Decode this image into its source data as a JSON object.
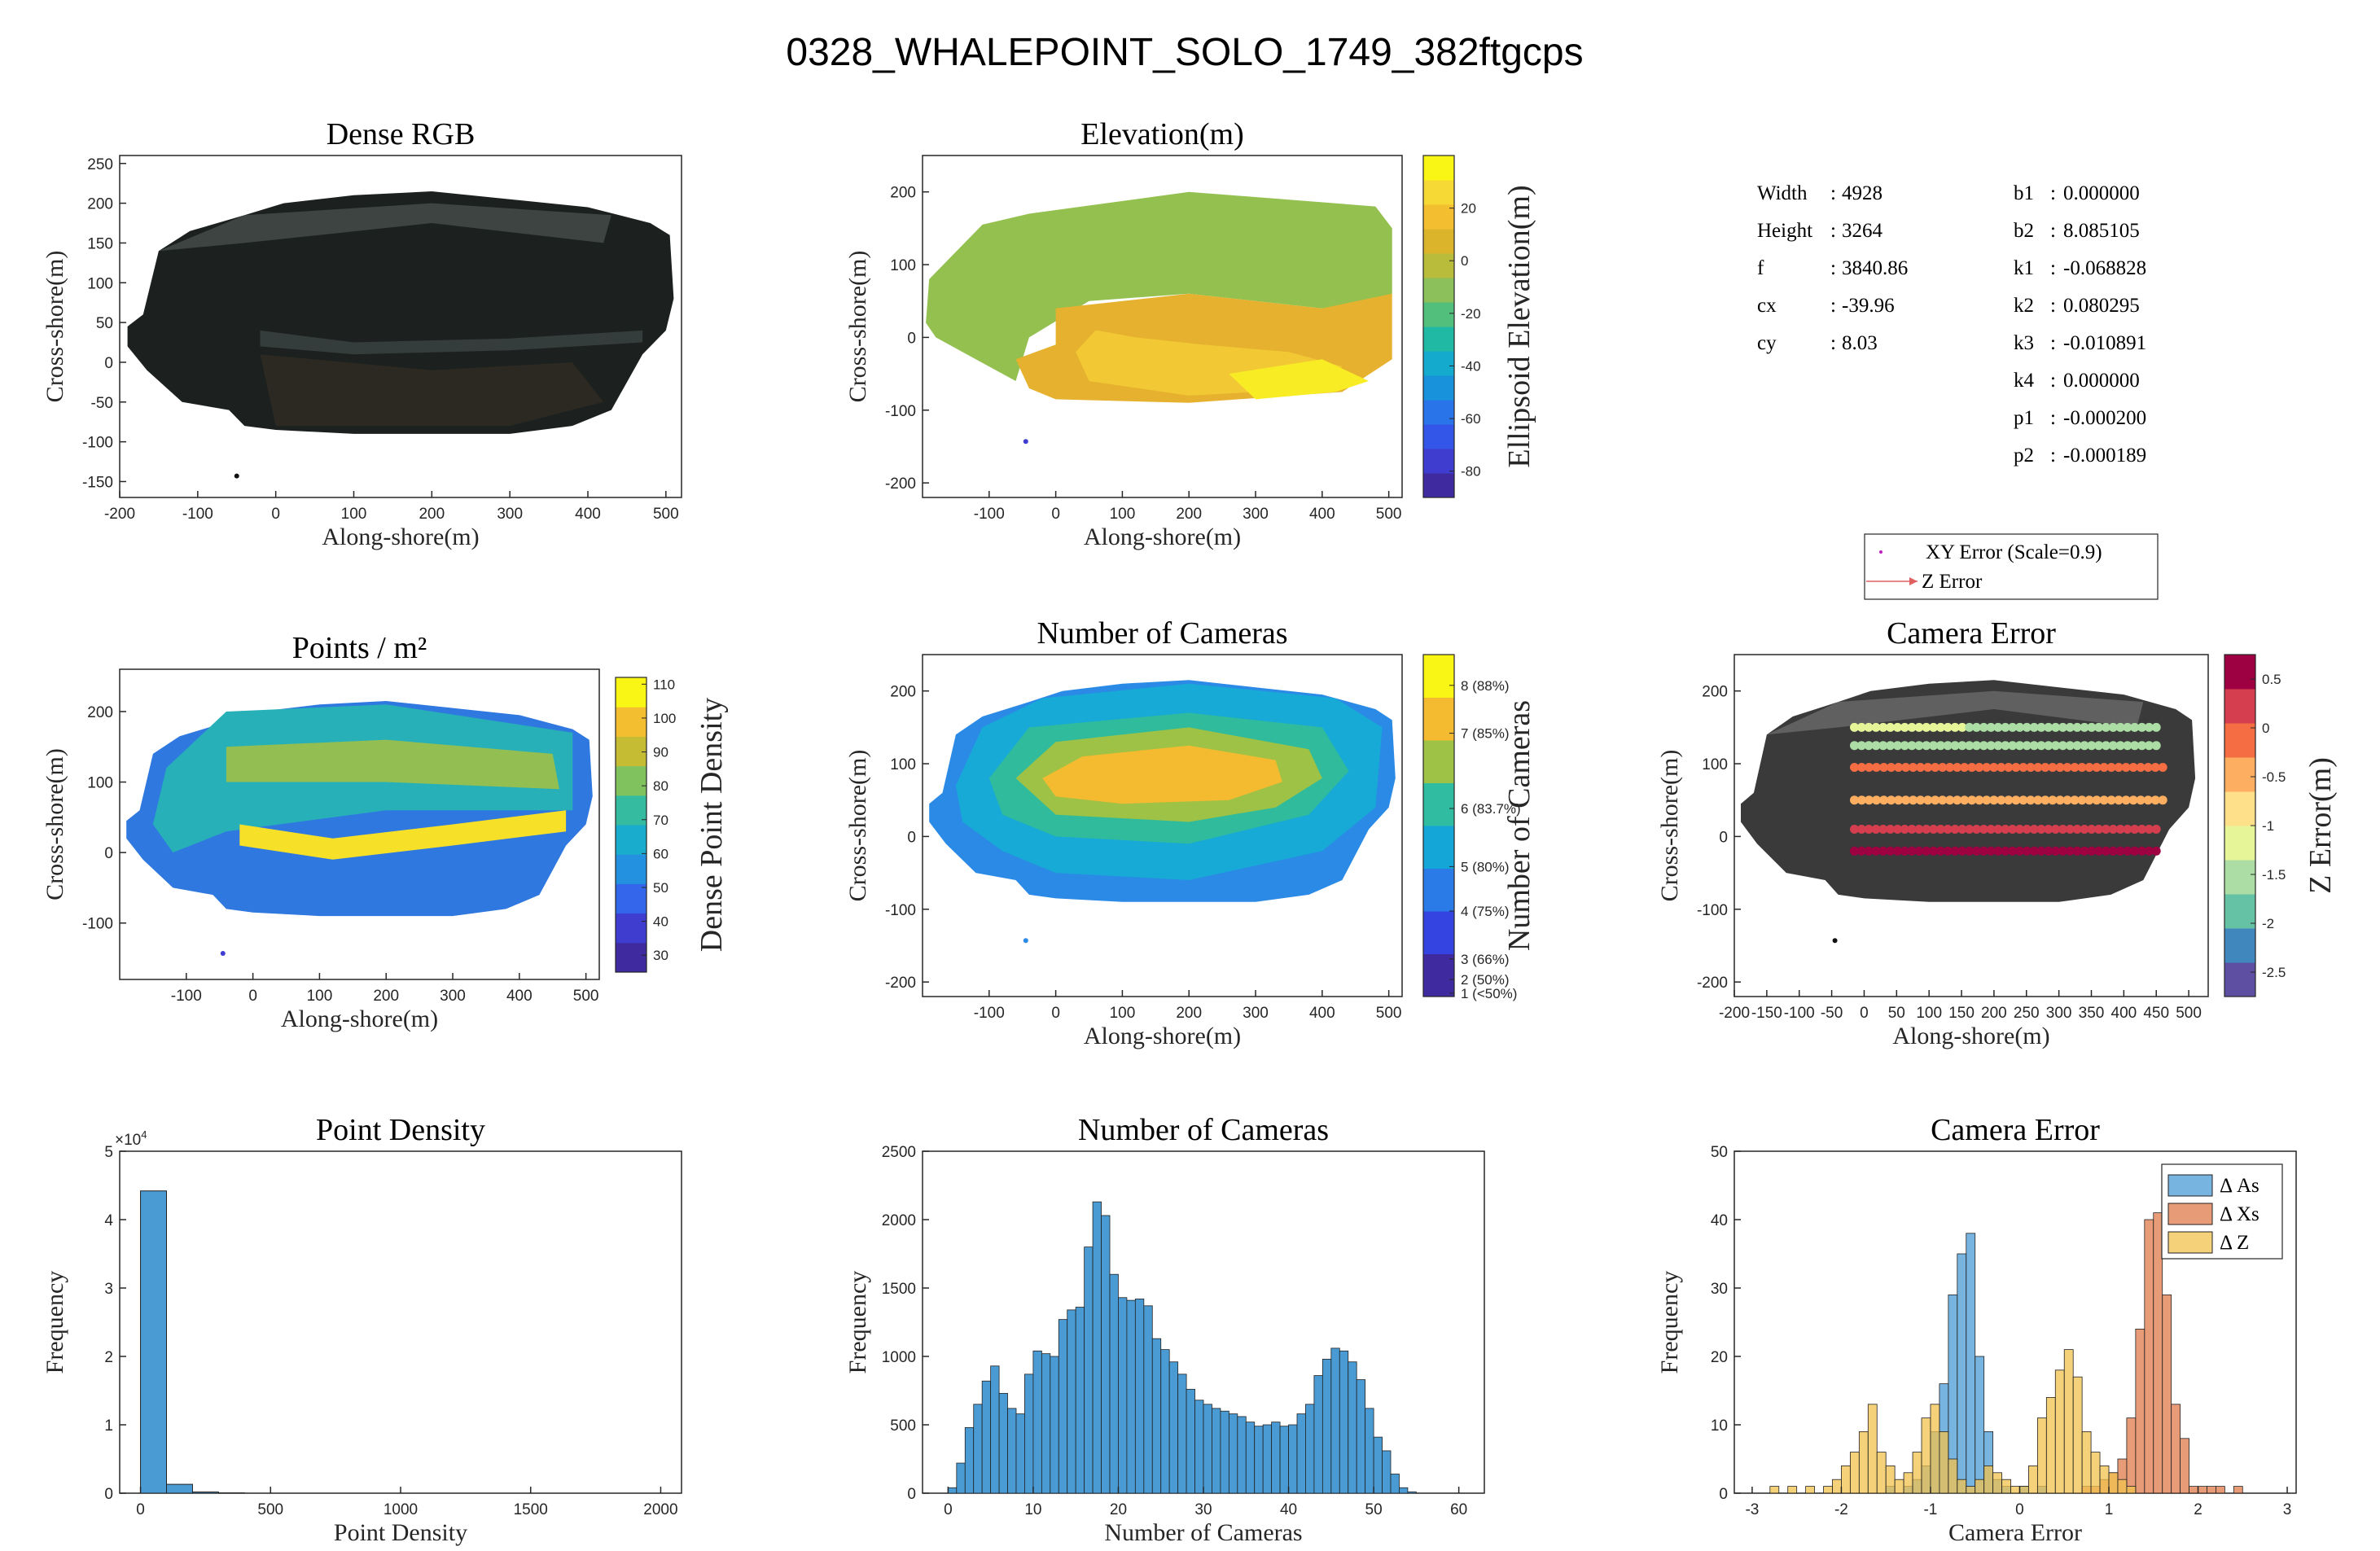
{
  "suptitle": "0328_WHALEPOINT_SOLO_1749_382ftgcps",
  "colors": {
    "hist_blue": "#4a9bd4",
    "hist_orange": "#e07a4a",
    "hist_yellow": "#f2c14e",
    "axis": "#262626"
  },
  "camera_info_left": [
    {
      "key": "Width",
      "value": "4928"
    },
    {
      "key": "Height",
      "value": "3264"
    },
    {
      "key": "f",
      "value": "3840.86"
    },
    {
      "key": "cx",
      "value": "-39.96"
    },
    {
      "key": "cy",
      "value": "8.03"
    }
  ],
  "camera_info_right": [
    {
      "key": "b1",
      "value": "0.000000"
    },
    {
      "key": "b2",
      "value": "8.085105"
    },
    {
      "key": "k1",
      "value": "-0.068828"
    },
    {
      "key": "k2",
      "value": "0.080295"
    },
    {
      "key": "k3",
      "value": "-0.010891"
    },
    {
      "key": "k4",
      "value": "0.000000"
    },
    {
      "key": "p1",
      "value": "-0.000200"
    },
    {
      "key": "p2",
      "value": "-0.000189"
    }
  ],
  "error_legend": {
    "xy": "XY Error (Scale=0.9)",
    "z": "Z Error"
  },
  "chart_data": [
    {
      "id": "dense_rgb",
      "type": "heatmap",
      "title": "Dense RGB",
      "xlabel": "Along-shore(m)",
      "ylabel": "Cross-shore(m)",
      "xlim": [
        -200,
        520
      ],
      "ylim": [
        -170,
        260
      ],
      "xticks": [
        -200,
        -100,
        0,
        100,
        200,
        300,
        400,
        500
      ],
      "yticks": [
        -150,
        -100,
        -50,
        0,
        50,
        100,
        150,
        200,
        250
      ]
    },
    {
      "id": "elevation",
      "type": "heatmap",
      "title": "Elevation(m)",
      "xlabel": "Along-shore(m)",
      "ylabel": "Cross-shore(m)",
      "xlim": [
        -200,
        520
      ],
      "ylim": [
        -220,
        250
      ],
      "xticks": [
        -100,
        0,
        100,
        200,
        300,
        400,
        500
      ],
      "yticks": [
        -200,
        -100,
        0,
        100,
        200
      ],
      "colorbar": {
        "label": "Ellipsoid Elevation(m)",
        "range": [
          -90,
          40
        ],
        "ticks": [
          20,
          0,
          -20,
          -40,
          -60,
          -80
        ],
        "colors": [
          "#3f2aa0",
          "#3e3dd0",
          "#3355e8",
          "#2a74ea",
          "#1992dc",
          "#13aacd",
          "#20b9a4",
          "#53bf7c",
          "#8cc05a",
          "#b8bc3a",
          "#dcb42c",
          "#f3be30",
          "#f6d935",
          "#f9f615"
        ]
      }
    },
    {
      "id": "point_density_map",
      "type": "heatmap",
      "title": "Points / m²",
      "xlabel": "Along-shore(m)",
      "ylabel": "Cross-shore(m)",
      "xlim": [
        -200,
        520
      ],
      "ylim": [
        -180,
        260
      ],
      "xticks": [
        -100,
        0,
        100,
        200,
        300,
        400,
        500
      ],
      "yticks": [
        -100,
        0,
        100,
        200
      ],
      "colorbar": {
        "label": "Dense Point Density",
        "range": [
          25,
          112
        ],
        "ticks": [
          110,
          100,
          90,
          80,
          70,
          60,
          50,
          40,
          30
        ],
        "colors": [
          "#3f2aa0",
          "#3e3dd0",
          "#3366ea",
          "#2391e0",
          "#1aaccc",
          "#35bca0",
          "#80c25e",
          "#c6bc34",
          "#f3be30",
          "#f9f615"
        ]
      }
    },
    {
      "id": "num_cameras_map",
      "type": "heatmap",
      "title": "Number of Cameras",
      "xlabel": "Along-shore(m)",
      "ylabel": "Cross-shore(m)",
      "xlim": [
        -200,
        520
      ],
      "ylim": [
        -220,
        250
      ],
      "xticks": [
        -100,
        0,
        100,
        200,
        300,
        400,
        500
      ],
      "yticks": [
        -200,
        -100,
        0,
        100,
        200
      ],
      "colorbar": {
        "label": "Number of Cameras",
        "ticks": [
          "8 (88%)",
          "7 (85%)",
          "6 (83.7%)",
          "5 (80%)",
          "4 (75%)",
          "3 (66%)",
          "2 (50%)",
          "1 (<50%)"
        ],
        "colors": [
          "#3f2aa0",
          "#3344e0",
          "#2a7be8",
          "#14a6d6",
          "#30bca0",
          "#9ec245",
          "#f4ba30",
          "#f9f615"
        ]
      }
    },
    {
      "id": "camera_error_map",
      "type": "scatter",
      "title": "Camera Error",
      "xlabel": "Along-shore(m)",
      "ylabel": "Cross-shore(m)",
      "xlim": [
        -200,
        530
      ],
      "ylim": [
        -220,
        250
      ],
      "xticks": [
        -200,
        -150,
        -100,
        -50,
        0,
        50,
        100,
        150,
        200,
        250,
        300,
        350,
        400,
        450,
        500
      ],
      "yticks": [
        -200,
        -100,
        0,
        100,
        200
      ],
      "flight_lines": [
        {
          "y": 150,
          "x": [
            -15,
            450
          ],
          "z_start": -1.2,
          "z_end": -1.6
        },
        {
          "y": 125,
          "x": [
            -15,
            450
          ],
          "z_start": -1.4,
          "z_end": -1.4
        },
        {
          "y": 95,
          "x": [
            -15,
            460
          ],
          "z_start": -0.1,
          "z_end": -0.1
        },
        {
          "y": 50,
          "x": [
            -15,
            460
          ],
          "z_start": -0.6,
          "z_end": -0.6
        },
        {
          "y": 10,
          "x": [
            -15,
            450
          ],
          "z_start": 0.3,
          "z_end": 0.2
        },
        {
          "y": -20,
          "x": [
            -15,
            450
          ],
          "z_start": 0.5,
          "z_end": 0.4
        }
      ],
      "colorbar": {
        "label": "Z Error(m)",
        "range": [
          -2.75,
          0.75
        ],
        "ticks": [
          0.5,
          0,
          -0.5,
          -1,
          -1.5,
          -2,
          -2.5
        ],
        "colors": [
          "#5e4fa2",
          "#3f87bc",
          "#66c2a5",
          "#abdda4",
          "#e6f598",
          "#fee08b",
          "#fdae61",
          "#f46d43",
          "#d53e4f",
          "#9e0142"
        ]
      }
    },
    {
      "id": "point_density_hist",
      "type": "bar",
      "title": "Point Density",
      "xlabel": "Point Density",
      "ylabel": "Frequency",
      "xlim": [
        -80,
        2080
      ],
      "ylim": [
        0,
        50000
      ],
      "xticks": [
        0,
        500,
        1000,
        1500,
        2000
      ],
      "yticks": [
        0,
        10000,
        20000,
        30000,
        40000,
        50000
      ],
      "ytick_labels": [
        "0",
        "1",
        "2",
        "3",
        "4",
        "5"
      ],
      "exponent": "×10",
      "exponent_power": "4",
      "bin_edges": [
        0,
        100,
        200,
        300,
        400
      ],
      "values": [
        44200,
        1300,
        180,
        50
      ]
    },
    {
      "id": "num_cameras_hist",
      "type": "bar",
      "title": "Number of Cameras",
      "xlabel": "Number of Cameras",
      "ylabel": "Frequency",
      "xlim": [
        -3,
        63
      ],
      "ylim": [
        0,
        2500
      ],
      "xticks": [
        0,
        10,
        20,
        30,
        40,
        50,
        60
      ],
      "yticks": [
        0,
        500,
        1000,
        1500,
        2000,
        2500
      ],
      "bin_start": 0,
      "bin_width": 1,
      "values": [
        40,
        220,
        480,
        650,
        820,
        930,
        730,
        620,
        580,
        870,
        1040,
        1020,
        1000,
        1270,
        1340,
        1360,
        1800,
        2130,
        2030,
        1600,
        1430,
        1410,
        1420,
        1370,
        1130,
        1050,
        960,
        870,
        760,
        680,
        650,
        620,
        600,
        580,
        560,
        520,
        490,
        500,
        520,
        490,
        500,
        580,
        650,
        860,
        980,
        1060,
        1040,
        960,
        830,
        620,
        410,
        310,
        140,
        40,
        10
      ]
    },
    {
      "id": "camera_error_hist",
      "type": "bar",
      "title": "Camera Error",
      "xlabel": "Camera Error",
      "ylabel": "Frequency",
      "xlim": [
        -3.2,
        3.1
      ],
      "ylim": [
        0,
        50
      ],
      "xticks": [
        -3,
        -2,
        -1,
        0,
        1,
        2,
        3
      ],
      "yticks": [
        0,
        10,
        20,
        30,
        40,
        50
      ],
      "series": [
        {
          "name": "Δ As",
          "bin_start": -1.5,
          "bin_width": 0.1,
          "values": [
            1,
            0,
            1,
            2,
            4,
            9,
            16,
            29,
            35,
            38,
            20,
            9,
            2,
            1,
            0,
            1,
            0,
            1
          ]
        },
        {
          "name": "Δ Xs",
          "bin_start": 0.7,
          "bin_width": 0.1,
          "values": [
            1,
            1,
            2,
            3,
            5,
            11,
            24,
            40,
            41,
            29,
            13,
            8,
            1,
            1,
            1,
            1,
            0,
            1,
            0,
            0
          ]
        },
        {
          "name": "Δ Z",
          "bin_start": -3.0,
          "bin_width": 0.1,
          "values": [
            0,
            0,
            1,
            0,
            1,
            0,
            1,
            0,
            1,
            2,
            4,
            6,
            9,
            13,
            6,
            4,
            2,
            3,
            6,
            11,
            13,
            9,
            5,
            2,
            1,
            2,
            4,
            3,
            2,
            1,
            1,
            4,
            11,
            14,
            18,
            21,
            17,
            9,
            6,
            4,
            3,
            2,
            1
          ]
        }
      ]
    }
  ]
}
